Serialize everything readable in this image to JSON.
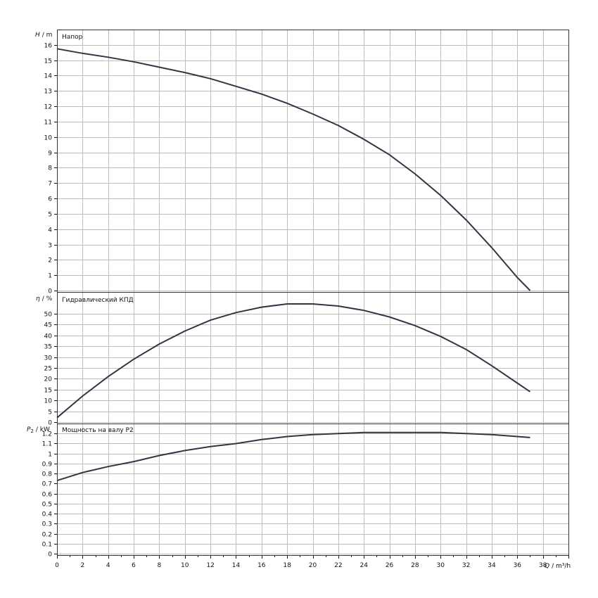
{
  "chart_data": [
    {
      "type": "line",
      "title": "Напор",
      "ylabel_var": "H",
      "ylabel_unit": "/ m",
      "xlim": [
        0,
        40
      ],
      "ylim": [
        0,
        17
      ],
      "y_ticks": [
        0,
        1,
        2,
        3,
        4,
        5,
        6,
        7,
        8,
        9,
        10,
        11,
        12,
        13,
        14,
        15,
        16
      ],
      "grid": true,
      "series": [
        {
          "x": [
            0,
            2,
            4,
            6,
            8,
            10,
            12,
            14,
            16,
            18,
            20,
            22,
            24,
            26,
            28,
            30,
            32,
            34,
            36,
            37
          ],
          "values": [
            15.75,
            15.45,
            15.2,
            14.9,
            14.55,
            14.2,
            13.8,
            13.3,
            12.8,
            12.2,
            11.5,
            10.75,
            9.85,
            8.85,
            7.6,
            6.2,
            4.6,
            2.8,
            0.85,
            0
          ]
        }
      ]
    },
    {
      "type": "line",
      "title": "Гидравлический КПД",
      "ylabel_var": "η",
      "ylabel_unit": "/ %",
      "xlim": [
        0,
        40
      ],
      "ylim": [
        0,
        60
      ],
      "y_ticks": [
        0,
        5,
        10,
        15,
        20,
        25,
        30,
        35,
        40,
        45,
        50
      ],
      "grid": true,
      "series": [
        {
          "x": [
            0,
            2,
            4,
            6,
            8,
            10,
            12,
            14,
            16,
            18,
            20,
            22,
            24,
            26,
            28,
            30,
            32,
            34,
            36,
            37
          ],
          "values": [
            2,
            12,
            21,
            29,
            36,
            42,
            47,
            50.5,
            53,
            54.5,
            54.5,
            53.5,
            51.5,
            48.5,
            44.5,
            39.5,
            33.5,
            26,
            18,
            14
          ]
        }
      ]
    },
    {
      "type": "line",
      "title": "Мощность на валу P2",
      "ylabel_var": "P",
      "ylabel_sub": "2",
      "ylabel_unit": "/ kW",
      "xlabel_var": "Q",
      "xlabel_unit": "/ m³/h",
      "xlim": [
        0,
        40
      ],
      "ylim": [
        0,
        1.3
      ],
      "y_ticks": [
        "0",
        "0.1",
        "0.2",
        "0.3",
        "0.4",
        "0.5",
        "0.6",
        "0.7",
        "0.8",
        "0.9",
        "1",
        "1.1",
        "1.2"
      ],
      "x_ticks": [
        "0",
        "2",
        "4",
        "6",
        "8",
        "10",
        "12",
        "14",
        "16",
        "18",
        "20",
        "22",
        "24",
        "26",
        "28",
        "30",
        "32",
        "34",
        "36",
        "38"
      ],
      "grid": true,
      "series": [
        {
          "x": [
            0,
            2,
            4,
            6,
            8,
            10,
            12,
            14,
            16,
            18,
            20,
            22,
            24,
            26,
            28,
            30,
            32,
            34,
            36,
            37
          ],
          "values": [
            0.73,
            0.81,
            0.87,
            0.92,
            0.98,
            1.03,
            1.07,
            1.1,
            1.14,
            1.17,
            1.19,
            1.2,
            1.21,
            1.21,
            1.21,
            1.21,
            1.2,
            1.19,
            1.17,
            1.16
          ]
        }
      ]
    }
  ]
}
